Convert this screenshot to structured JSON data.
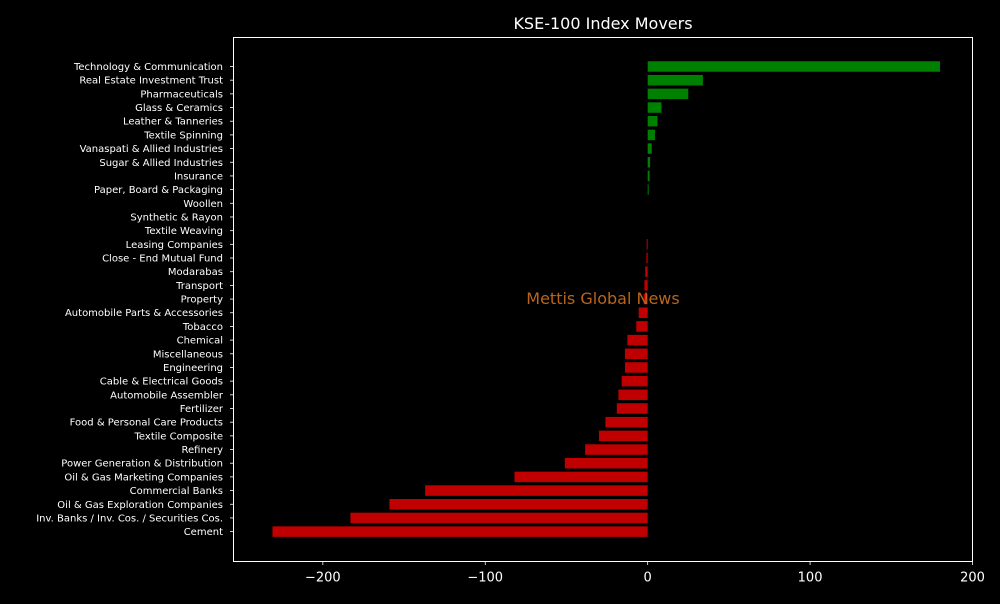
{
  "chart_data": {
    "type": "bar",
    "orientation": "horizontal",
    "title": "KSE-100 Index Movers",
    "xlabel": "",
    "ylabel": "",
    "xlim": [
      -255,
      200
    ],
    "x_ticks": [
      -200,
      -100,
      0,
      100,
      200
    ],
    "x_tick_labels": [
      "−200",
      "−100",
      "0",
      "100",
      "200"
    ],
    "grid": false,
    "annotation": "Mettis Global News",
    "colors": {
      "background": "#000000",
      "text": "#ffffff",
      "positive": "#008000",
      "negative": "#c00000",
      "annotation": "#b8651b"
    },
    "categories": [
      "Technology & Communication",
      "Real Estate Investment Trust",
      "Pharmaceuticals",
      "Glass & Ceramics",
      "Leather & Tanneries",
      "Textile Spinning",
      "Vanaspati & Allied Industries",
      "Sugar & Allied Industries",
      "Insurance",
      "Paper, Board & Packaging",
      "Woollen",
      "Synthetic & Rayon",
      "Textile Weaving",
      "Leasing Companies",
      "Close - End Mutual Fund",
      "Modarabas",
      "Transport",
      "Property",
      "Automobile Parts & Accessories",
      "Tobacco",
      "Chemical",
      "Miscellaneous",
      "Engineering",
      "Cable & Electrical Goods",
      "Automobile Assembler",
      "Fertilizer",
      "Food & Personal Care Products",
      "Textile Composite",
      "Refinery",
      "Power Generation & Distribution",
      "Oil & Gas Marketing Companies",
      "Commercial Banks",
      "Oil & Gas Exploration Companies",
      "Inv. Banks / Inv. Cos. / Securities Cos.",
      "Cement"
    ],
    "values": [
      180,
      34,
      25,
      8.5,
      6,
      4.5,
      2.5,
      1.5,
      1.2,
      0.5,
      0,
      0,
      0,
      -0.5,
      -0.8,
      -1.5,
      -2,
      -2.5,
      -5.5,
      -7,
      -12.5,
      -14,
      -14,
      -16,
      -18,
      -19,
      -26,
      -30,
      -38.5,
      -51,
      -82,
      -137,
      -159,
      -183,
      -231
    ]
  }
}
